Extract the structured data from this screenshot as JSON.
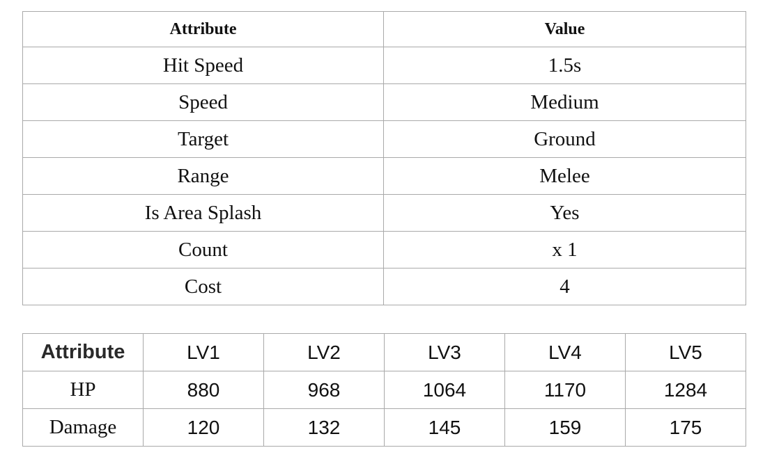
{
  "attributes_table": {
    "headers": {
      "attribute": "Attribute",
      "value": "Value"
    },
    "rows": [
      {
        "attribute": "Hit Speed",
        "value": "1.5s"
      },
      {
        "attribute": "Speed",
        "value": "Medium"
      },
      {
        "attribute": "Target",
        "value": "Ground"
      },
      {
        "attribute": "Range",
        "value": "Melee"
      },
      {
        "attribute": "Is Area Splash",
        "value": "Yes"
      },
      {
        "attribute": "Count",
        "value": "x 1"
      },
      {
        "attribute": "Cost",
        "value": "4"
      }
    ]
  },
  "levels_table": {
    "headers": [
      "Attribute",
      "LV1",
      "LV2",
      "LV3",
      "LV4",
      "LV5"
    ],
    "rows": [
      {
        "label": "HP",
        "values": [
          "880",
          "968",
          "1064",
          "1170",
          "1284"
        ]
      },
      {
        "label": "Damage",
        "values": [
          "120",
          "132",
          "145",
          "159",
          "175"
        ]
      }
    ]
  }
}
